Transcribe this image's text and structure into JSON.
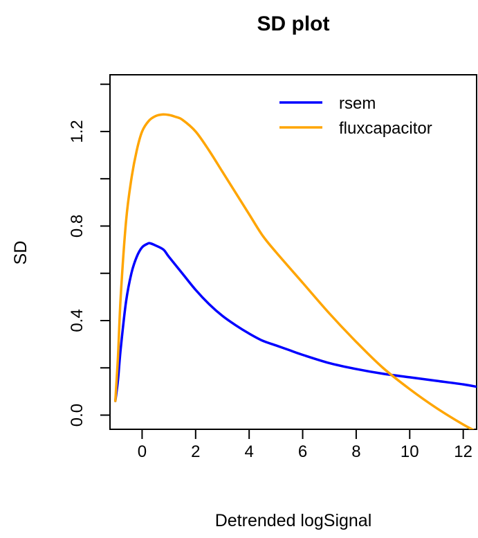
{
  "chart_data": {
    "type": "line",
    "title": "SD plot",
    "xlabel": "Detrended logSignal",
    "ylabel": "SD",
    "xlim": [
      -1.2,
      12.5
    ],
    "ylim": [
      -0.06,
      1.44
    ],
    "x_ticks": [
      0,
      2,
      4,
      6,
      8,
      10,
      12
    ],
    "x_tick_labels": [
      "0",
      "2",
      "4",
      "6",
      "8",
      "10",
      "12"
    ],
    "y_ticks": [
      0.0,
      0.2,
      0.4,
      0.6,
      0.8,
      1.0,
      1.2,
      1.4
    ],
    "y_tick_labels": [
      "0.0",
      "",
      "0.4",
      "",
      "0.8",
      "",
      "1.2",
      ""
    ],
    "grid": false,
    "legend_position": "top-right",
    "series": [
      {
        "name": "rsem",
        "color": "#0000ff",
        "x": [
          -1.0,
          -0.9,
          -0.8,
          -0.6,
          -0.4,
          -0.2,
          0.0,
          0.2,
          0.3,
          0.5,
          0.8,
          1.0,
          1.5,
          2.0,
          2.5,
          3.0,
          3.5,
          4.0,
          4.5,
          5.0,
          5.5,
          6.0,
          7.0,
          8.0,
          9.0,
          10.0,
          11.0,
          12.0,
          12.5
        ],
        "y": [
          0.06,
          0.15,
          0.28,
          0.48,
          0.6,
          0.67,
          0.71,
          0.725,
          0.727,
          0.718,
          0.7,
          0.67,
          0.6,
          0.53,
          0.47,
          0.42,
          0.38,
          0.345,
          0.315,
          0.295,
          0.275,
          0.255,
          0.22,
          0.195,
          0.175,
          0.16,
          0.145,
          0.13,
          0.12
        ]
      },
      {
        "name": "fluxcapacitor",
        "color": "#ffa500",
        "x": [
          -1.0,
          -0.9,
          -0.8,
          -0.6,
          -0.4,
          -0.2,
          0.0,
          0.25,
          0.5,
          0.75,
          1.0,
          1.25,
          1.5,
          2.0,
          2.5,
          3.0,
          3.5,
          4.0,
          4.5,
          5.0,
          6.0,
          7.0,
          8.0,
          9.0,
          10.0,
          11.0,
          12.0,
          12.5
        ],
        "y": [
          0.06,
          0.25,
          0.5,
          0.82,
          1.0,
          1.12,
          1.2,
          1.245,
          1.265,
          1.272,
          1.27,
          1.262,
          1.25,
          1.2,
          1.12,
          1.03,
          0.94,
          0.85,
          0.76,
          0.69,
          0.56,
          0.43,
          0.31,
          0.2,
          0.11,
          0.03,
          -0.04,
          -0.07
        ]
      }
    ]
  }
}
